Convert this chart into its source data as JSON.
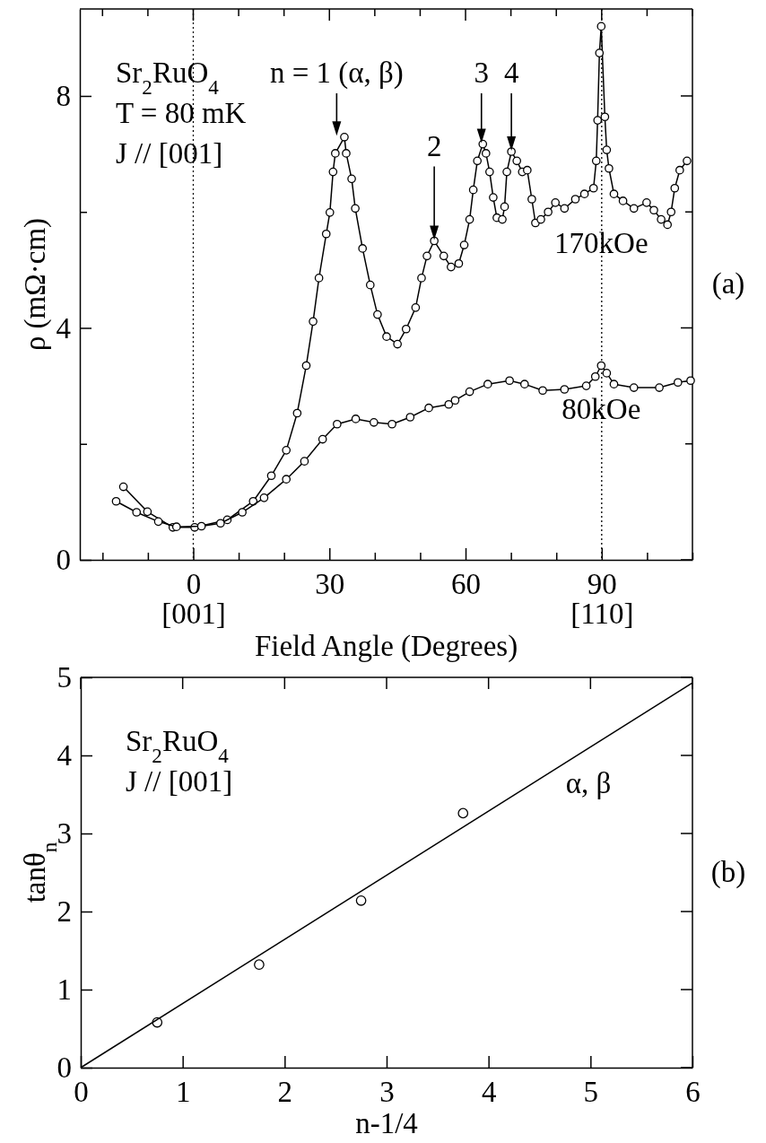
{
  "chart_data": [
    {
      "type": "line",
      "xlabel": "Field Angle (Degrees)",
      "ylabel": "ρ (mΩ·cm)",
      "xlim": [
        -25,
        110
      ],
      "ylim": [
        0,
        9.5
      ],
      "xticks": [
        {
          "value": -20,
          "label": null
        },
        {
          "value": -10,
          "label": null
        },
        {
          "value": 0,
          "label": "0\n[001]"
        },
        {
          "value": 10,
          "label": null
        },
        {
          "value": 20,
          "label": null
        },
        30,
        {
          "value": 40,
          "label": null
        },
        {
          "value": 50,
          "label": null
        },
        60,
        {
          "value": 70,
          "label": null
        },
        {
          "value": 80,
          "label": null
        },
        {
          "value": 90,
          "label": "90\n[110]"
        },
        {
          "value": 100,
          "label": null
        },
        {
          "value": 110,
          "label": null
        }
      ],
      "yticks": [
        0,
        {
          "value": 2,
          "label": null
        },
        4,
        {
          "value": 6,
          "label": null
        },
        8
      ],
      "marker": "circle",
      "ref_lines": [
        {
          "axis": "x",
          "value": 0,
          "line_style": "dotted"
        },
        {
          "axis": "x",
          "value": 90,
          "line_style": "dotted"
        }
      ],
      "annotations": [
        "Sr$_{2}$RuO$_{4}$",
        "T = 80 mK",
        "J // [001]",
        {
          "text": "n = 1 (α, β)",
          "x": 31.6,
          "y": 7.3
        },
        {
          "text": "2",
          "x": 53.1,
          "y": 5.5
        },
        {
          "text": "3",
          "x": 63.5,
          "y": 7.17
        },
        {
          "text": "4",
          "x": 70.1,
          "y": 7.04
        },
        "(a)"
      ],
      "series": [
        {
          "name": "170kOe",
          "color": "#000000",
          "x": [
            -15.4,
            -10.1,
            -4.5,
            0.3,
            7.5,
            13.2,
            17.2,
            20.5,
            22.9,
            24.9,
            26.4,
            27.7,
            29.3,
            30.1,
            30.8,
            31.3,
            33.3,
            33.7,
            34.9,
            35.7,
            37.3,
            39.0,
            40.6,
            42.6,
            45.0,
            46.9,
            49.0,
            50.3,
            51.5,
            53.1,
            55.2,
            56.8,
            58.5,
            59.7,
            60.9,
            61.7,
            62.6,
            63.8,
            64.5,
            65.3,
            66.1,
            66.9,
            68.1,
            68.6,
            69.1,
            70.1,
            71.3,
            72.5,
            73.6,
            74.6,
            75.4,
            76.6,
            78.2,
            79.8,
            81.8,
            84.2,
            86.2,
            88.2,
            88.8,
            89.1,
            89.5,
            89.9,
            90.7,
            91.1,
            91.6,
            92.7,
            94.7,
            97.1,
            99.9,
            101.5,
            103.1,
            104.5,
            105.3,
            106.1,
            107.2,
            108.8
          ],
          "values": [
            1.26,
            0.83,
            0.56,
            0.56,
            0.69,
            1.01,
            1.45,
            1.89,
            2.53,
            3.35,
            4.11,
            4.86,
            5.62,
            5.99,
            6.69,
            7.01,
            7.29,
            7.01,
            6.57,
            6.06,
            5.37,
            4.74,
            4.23,
            3.85,
            3.72,
            3.98,
            4.35,
            4.86,
            5.24,
            5.5,
            5.24,
            5.05,
            5.11,
            5.43,
            5.87,
            6.38,
            6.88,
            7.17,
            7.01,
            6.69,
            6.25,
            5.9,
            5.87,
            6.09,
            6.69,
            7.04,
            6.88,
            6.69,
            6.72,
            6.22,
            5.81,
            5.87,
            6.0,
            6.16,
            6.06,
            6.22,
            6.31,
            6.41,
            6.88,
            7.58,
            8.74,
            9.2,
            7.64,
            7.07,
            6.75,
            6.31,
            6.19,
            6.06,
            6.16,
            6.03,
            5.87,
            5.78,
            6.0,
            6.41,
            6.72,
            6.88
          ]
        },
        {
          "name": "80kOe",
          "color": "#000000",
          "x": [
            -17.0,
            -12.5,
            -7.7,
            -3.7,
            1.8,
            6.0,
            10.8,
            15.6,
            20.5,
            24.5,
            28.5,
            31.7,
            35.8,
            39.8,
            43.8,
            47.8,
            51.9,
            56.3,
            57.7,
            60.9,
            64.9,
            69.7,
            73.0,
            77.0,
            81.8,
            86.6,
            88.6,
            89.9,
            91.1,
            92.7,
            97.1,
            102.7,
            106.8,
            109.6
          ],
          "values": [
            1.01,
            0.82,
            0.66,
            0.57,
            0.58,
            0.63,
            0.82,
            1.07,
            1.39,
            1.7,
            2.08,
            2.34,
            2.43,
            2.37,
            2.34,
            2.46,
            2.62,
            2.68,
            2.75,
            2.9,
            3.03,
            3.09,
            3.03,
            2.92,
            2.94,
            3.0,
            3.16,
            3.35,
            3.22,
            3.03,
            2.97,
            2.97,
            3.06,
            3.09
          ]
        }
      ]
    },
    {
      "type": "scatter",
      "xlabel": "n-1/4",
      "ylabel": "tanθ$_{n}$",
      "xlim": [
        0,
        6
      ],
      "ylim": [
        0,
        5
      ],
      "xticks": [
        0,
        1,
        2,
        3,
        4,
        5,
        6
      ],
      "yticks": [
        0,
        1,
        2,
        3,
        4,
        5
      ],
      "marker": "circle",
      "annotations": [
        "Sr$_{2}$RuO$_{4}$",
        "J // [001]",
        "(b)"
      ],
      "series": [
        {
          "color": "#000000",
          "x": [
            0.75,
            1.75,
            2.75,
            3.75
          ],
          "values": [
            0.58,
            1.32,
            2.14,
            3.26
          ]
        },
        {
          "type": "line",
          "name": "α, β",
          "color": "#000000",
          "marker": "none",
          "x": [
            0,
            6
          ],
          "values": [
            0,
            4.93
          ]
        }
      ]
    }
  ]
}
